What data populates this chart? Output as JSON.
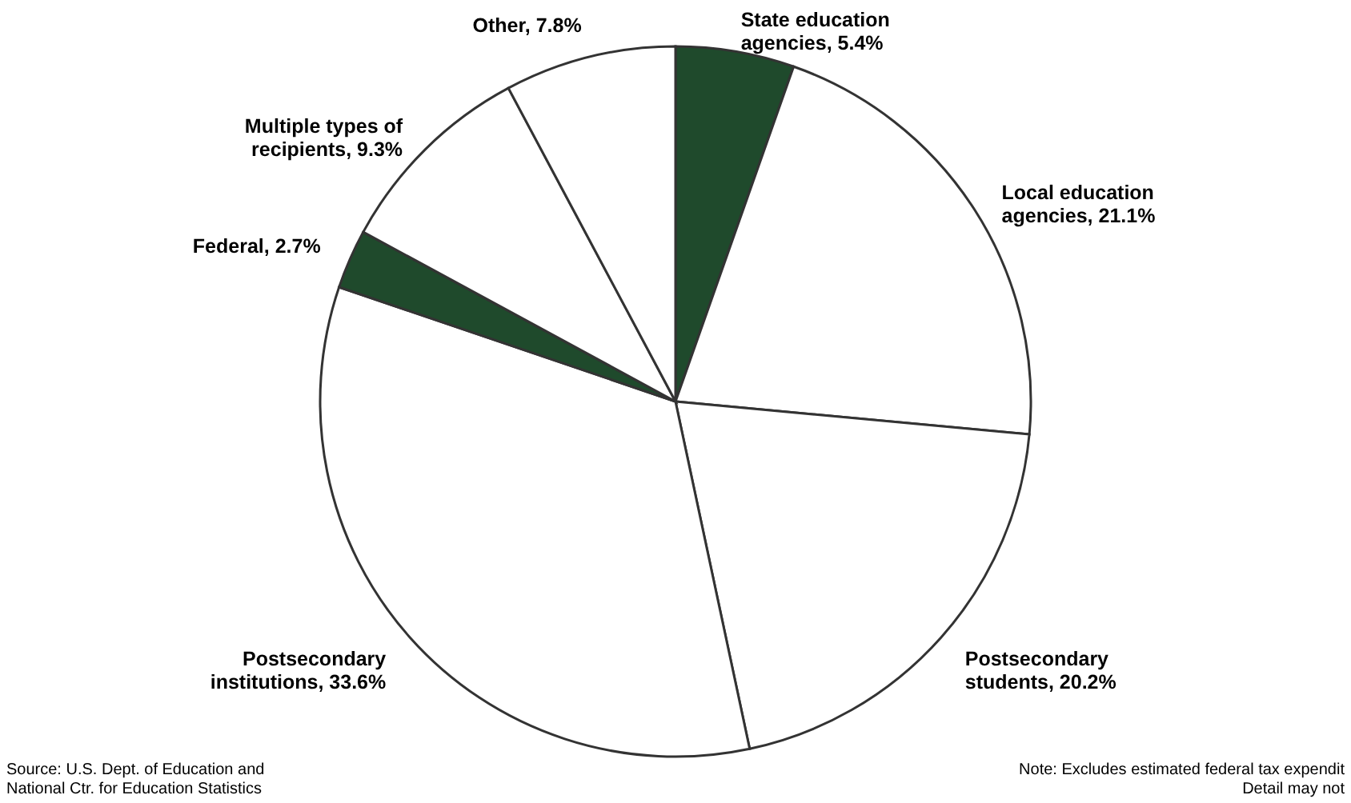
{
  "chart_data": {
    "type": "pie",
    "categories": [
      "State education agencies",
      "Local education agencies",
      "Postsecondary students",
      "Postsecondary institutions",
      "Federal",
      "Multiple types of recipients",
      "Other"
    ],
    "values": [
      5.4,
      21.1,
      20.2,
      33.6,
      2.7,
      9.3,
      7.8
    ],
    "value_labels": [
      "5.4%",
      "21.1%",
      "20.2%",
      "33.6%",
      "2.7%",
      "9.3%",
      "7.8%"
    ],
    "colors": [
      "#1f4a2c",
      "#ffffff",
      "#ffffff",
      "#ffffff",
      "#1f4a2c",
      "#ffffff",
      "#ffffff"
    ],
    "legend": false,
    "annotations": [
      "Source: U.S. Dept. of Education and\nNational Ctr. for Education Statistics",
      "Note: Excludes estimated federal tax expendit\nDetail may not"
    ]
  }
}
